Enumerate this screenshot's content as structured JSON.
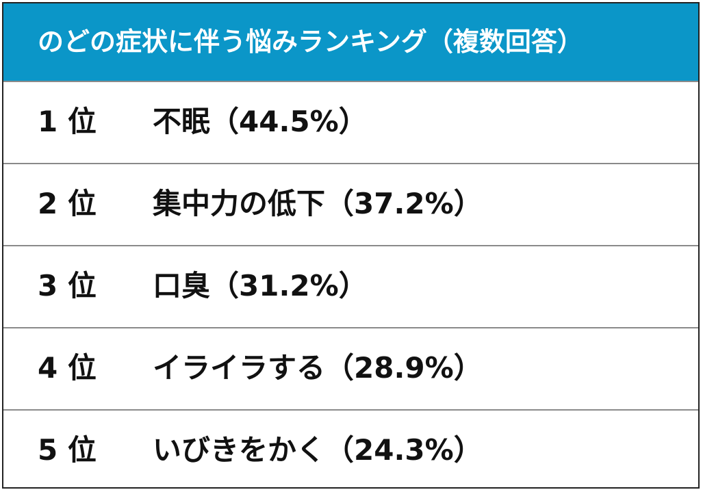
{
  "header": {
    "title": "のどの症状に伴う悩みランキング（複数回答）"
  },
  "table": {
    "rows": [
      [
        "1 位",
        "不眠（44.5%）"
      ],
      [
        "2 位",
        "集中力の低下（37.2%）"
      ],
      [
        "3 位",
        "口臭（31.2%）"
      ],
      [
        "4 位",
        "イライラする（28.9%）"
      ],
      [
        "5 位",
        "いびきをかく（24.3%）"
      ]
    ]
  }
}
